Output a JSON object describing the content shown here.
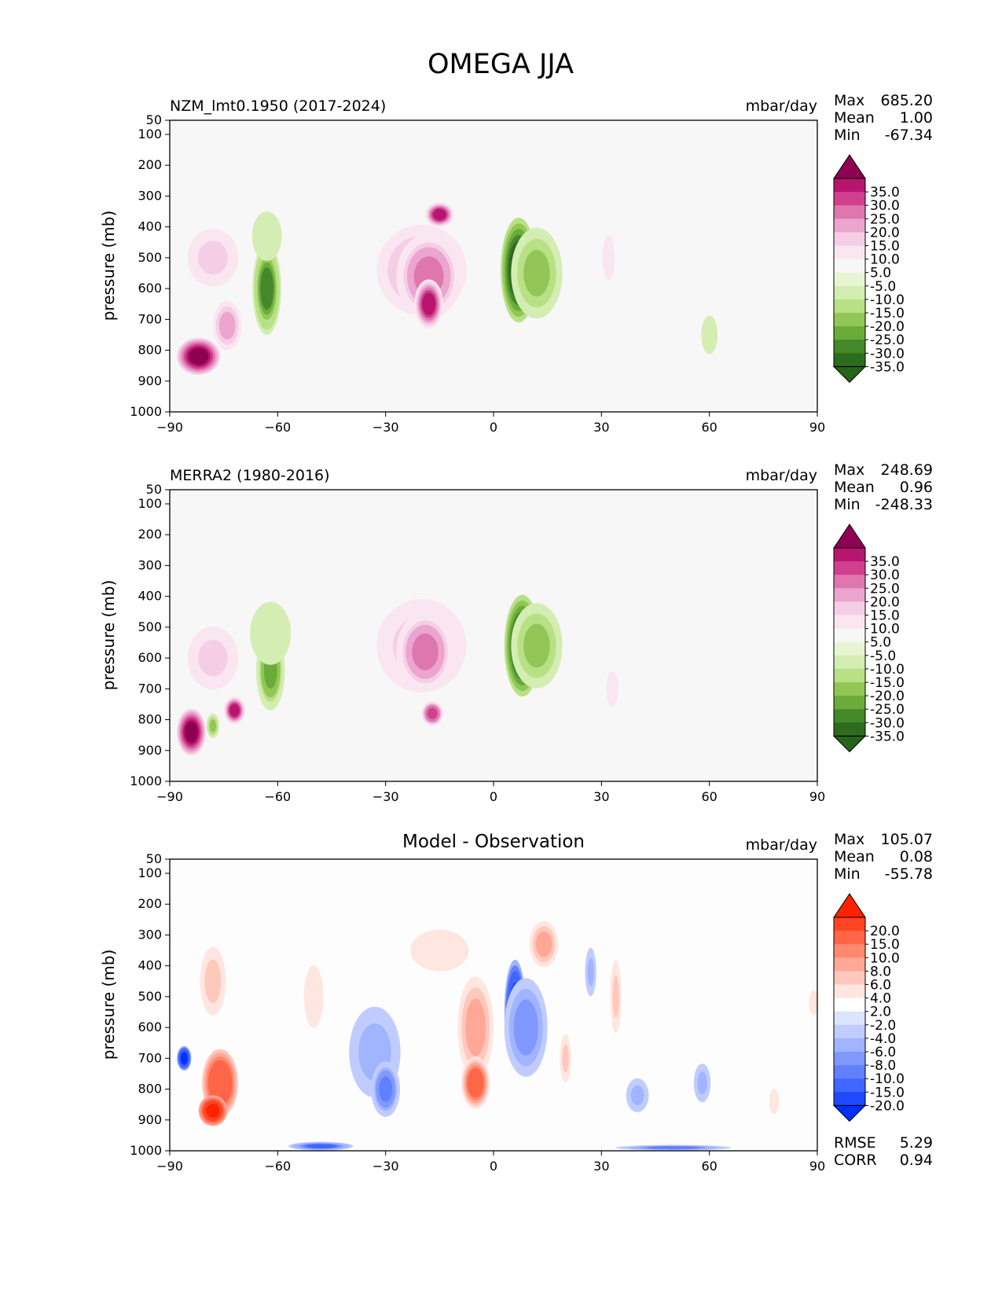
{
  "figure_title": "OMEGA JJA",
  "chart_data": [
    {
      "type": "heatmap",
      "panel": "model",
      "title": "NZM_lmt0.1950 (2017-2024)",
      "units": "mbar/day",
      "xlabel": "",
      "ylabel": "pressure (mb)",
      "xlim": [
        -90,
        90
      ],
      "ylim": [
        1000,
        50
      ],
      "x_ticks": [
        "−90",
        "−60",
        "−30",
        "0",
        "30",
        "60",
        "90"
      ],
      "y_ticks": [
        "50",
        "100",
        "200",
        "300",
        "400",
        "500",
        "600",
        "700",
        "800",
        "900",
        "1000"
      ],
      "stats": {
        "max_label": "Max",
        "max": "685.20",
        "mean_label": "Mean",
        "mean": "1.00",
        "min_label": "Min",
        "min": "-67.34"
      },
      "colorbar": {
        "labels": [
          "35.0",
          "30.0",
          "25.0",
          "20.0",
          "15.0",
          "10.0",
          "5.0",
          "-5.0",
          "-10.0",
          "-15.0",
          "-20.0",
          "-25.0",
          "-30.0",
          "-35.0"
        ],
        "colors": [
          "#8e0152",
          "#b8156e",
          "#d13f8f",
          "#de77ae",
          "#eba5cf",
          "#f5cee6",
          "#fae6f1",
          "#f7f7f7",
          "#e8f5d5",
          "#d4edb3",
          "#b8e186",
          "#92c657",
          "#6aab3a",
          "#44882a",
          "#2d6b1f",
          "#276419"
        ]
      },
      "features": [
        {
          "kind": "blob",
          "lat": -78,
          "plev": 500,
          "wlat": 9,
          "hp": 240,
          "value": 10
        },
        {
          "kind": "blob",
          "lat": -82,
          "plev": 820,
          "wlat": 6,
          "hp": 120,
          "value": 40
        },
        {
          "kind": "blob",
          "lat": -74,
          "plev": 720,
          "wlat": 4,
          "hp": 160,
          "value": 18
        },
        {
          "kind": "blob",
          "lat": -63,
          "plev": 600,
          "wlat": 4,
          "hp": 300,
          "value": -25
        },
        {
          "kind": "blob",
          "lat": -63,
          "plev": 430,
          "wlat": 9,
          "hp": 350,
          "value": -5
        },
        {
          "kind": "blob",
          "lat": -20,
          "plev": 540,
          "wlat": 14,
          "hp": 330,
          "value": 14
        },
        {
          "kind": "blob",
          "lat": -18,
          "plev": 560,
          "wlat": 9,
          "hp": 280,
          "value": 22
        },
        {
          "kind": "blob",
          "lat": -15,
          "plev": 360,
          "wlat": 4,
          "hp": 80,
          "value": 30
        },
        {
          "kind": "blob",
          "lat": -18,
          "plev": 650,
          "wlat": 4,
          "hp": 160,
          "value": 30
        },
        {
          "kind": "blob",
          "lat": 7,
          "plev": 540,
          "wlat": 5,
          "hp": 340,
          "value": -35
        },
        {
          "kind": "blob",
          "lat": 12,
          "plev": 550,
          "wlat": 8,
          "hp": 330,
          "value": -15
        },
        {
          "kind": "blob",
          "lat": 32,
          "plev": 500,
          "wlat": 3,
          "hp": 260,
          "value": 6
        },
        {
          "kind": "blob",
          "lat": 60,
          "plev": 750,
          "wlat": 4,
          "hp": 220,
          "value": -6
        }
      ]
    },
    {
      "type": "heatmap",
      "panel": "observation",
      "title": "MERRA2 (1980-2016)",
      "units": "mbar/day",
      "xlabel": "",
      "ylabel": "pressure (mb)",
      "xlim": [
        -90,
        90
      ],
      "ylim": [
        1000,
        50
      ],
      "x_ticks": [
        "−90",
        "−60",
        "−30",
        "0",
        "30",
        "60",
        "90"
      ],
      "y_ticks": [
        "50",
        "100",
        "200",
        "300",
        "400",
        "500",
        "600",
        "700",
        "800",
        "900",
        "1000"
      ],
      "stats": {
        "max_label": "Max",
        "max": "248.69",
        "mean_label": "Mean",
        "mean": "0.96",
        "min_label": "Min",
        "min": "-248.33"
      },
      "colorbar": {
        "labels": [
          "35.0",
          "30.0",
          "25.0",
          "20.0",
          "15.0",
          "10.0",
          "5.0",
          "-5.0",
          "-10.0",
          "-15.0",
          "-20.0",
          "-25.0",
          "-30.0",
          "-35.0"
        ],
        "colors": [
          "#8e0152",
          "#b8156e",
          "#d13f8f",
          "#de77ae",
          "#eba5cf",
          "#f5cee6",
          "#fae6f1",
          "#f7f7f7",
          "#e8f5d5",
          "#d4edb3",
          "#b8e186",
          "#92c657",
          "#6aab3a",
          "#44882a",
          "#2d6b1f",
          "#276419"
        ]
      },
      "features": [
        {
          "kind": "blob",
          "lat": -78,
          "plev": 600,
          "wlat": 9,
          "hp": 260,
          "value": 10
        },
        {
          "kind": "blob",
          "lat": -84,
          "plev": 840,
          "wlat": 4,
          "hp": 150,
          "value": 40
        },
        {
          "kind": "blob",
          "lat": -72,
          "plev": 770,
          "wlat": 3,
          "hp": 90,
          "value": 30
        },
        {
          "kind": "blob",
          "lat": -78,
          "plev": 820,
          "wlat": 2,
          "hp": 90,
          "value": -15
        },
        {
          "kind": "blob",
          "lat": -62,
          "plev": 640,
          "wlat": 4,
          "hp": 260,
          "value": -22
        },
        {
          "kind": "blob",
          "lat": -62,
          "plev": 520,
          "wlat": 10,
          "hp": 360,
          "value": -6
        },
        {
          "kind": "blob",
          "lat": -20,
          "plev": 560,
          "wlat": 14,
          "hp": 340,
          "value": 12
        },
        {
          "kind": "blob",
          "lat": -19,
          "plev": 580,
          "wlat": 8,
          "hp": 260,
          "value": 22
        },
        {
          "kind": "blob",
          "lat": -17,
          "plev": 780,
          "wlat": 3,
          "hp": 80,
          "value": 28
        },
        {
          "kind": "blob",
          "lat": 8,
          "plev": 560,
          "wlat": 5,
          "hp": 330,
          "value": -35
        },
        {
          "kind": "blob",
          "lat": 12,
          "plev": 560,
          "wlat": 8,
          "hp": 310,
          "value": -16
        },
        {
          "kind": "blob",
          "lat": 33,
          "plev": 700,
          "wlat": 3,
          "hp": 200,
          "value": 6
        }
      ]
    },
    {
      "type": "heatmap",
      "panel": "difference",
      "title": "Model - Observation",
      "units": "mbar/day",
      "xlabel": "",
      "ylabel": "pressure (mb)",
      "xlim": [
        -90,
        90
      ],
      "ylim": [
        1000,
        50
      ],
      "x_ticks": [
        "−90",
        "−60",
        "−30",
        "0",
        "30",
        "60",
        "90"
      ],
      "y_ticks": [
        "50",
        "100",
        "200",
        "300",
        "400",
        "500",
        "600",
        "700",
        "800",
        "900",
        "1000"
      ],
      "stats": {
        "max_label": "Max",
        "max": "105.07",
        "mean_label": "Mean",
        "mean": "0.08",
        "min_label": "Min",
        "min": "-55.78"
      },
      "metrics": {
        "rmse_label": "RMSE",
        "rmse": "5.29",
        "corr_label": "CORR",
        "corr": "0.94"
      },
      "colorbar": {
        "labels": [
          "20.0",
          "15.0",
          "10.0",
          "8.0",
          "6.0",
          "4.0",
          "2.0",
          "-2.0",
          "-4.0",
          "-6.0",
          "-8.0",
          "-10.0",
          "-15.0",
          "-20.0"
        ],
        "colors": [
          "#ff2200",
          "#ff4422",
          "#ff6648",
          "#ff8870",
          "#ffa898",
          "#ffc8bc",
          "#ffe6e0",
          "#ffffff",
          "#dde4ff",
          "#c0ccff",
          "#a0b4ff",
          "#8098ff",
          "#6080ff",
          "#3f66ff",
          "#1f48ff",
          "#0030ff"
        ]
      },
      "features": [
        {
          "kind": "blob",
          "lat": -76,
          "plev": 780,
          "wlat": 5,
          "hp": 220,
          "value": 14
        },
        {
          "kind": "blob",
          "lat": -78,
          "plev": 870,
          "wlat": 4,
          "hp": 100,
          "value": 22
        },
        {
          "kind": "blob",
          "lat": -86,
          "plev": 700,
          "wlat": 2,
          "hp": 80,
          "value": -20
        },
        {
          "kind": "blob",
          "lat": -78,
          "plev": 450,
          "wlat": 4,
          "hp": 250,
          "value": 5
        },
        {
          "kind": "blob",
          "lat": -50,
          "plev": 500,
          "wlat": 4,
          "hp": 300,
          "value": 3
        },
        {
          "kind": "blob",
          "lat": -33,
          "plev": 680,
          "wlat": 8,
          "hp": 330,
          "value": -5
        },
        {
          "kind": "blob",
          "lat": -30,
          "plev": 800,
          "wlat": 4,
          "hp": 180,
          "value": -9
        },
        {
          "kind": "blob",
          "lat": -15,
          "plev": 350,
          "wlat": 12,
          "hp": 200,
          "value": 3
        },
        {
          "kind": "blob",
          "lat": -5,
          "plev": 600,
          "wlat": 5,
          "hp": 330,
          "value": 7
        },
        {
          "kind": "blob",
          "lat": -5,
          "plev": 780,
          "wlat": 4,
          "hp": 170,
          "value": 12
        },
        {
          "kind": "blob",
          "lat": 6,
          "plev": 550,
          "wlat": 3,
          "hp": 340,
          "value": -20
        },
        {
          "kind": "blob",
          "lat": 9,
          "plev": 600,
          "wlat": 6,
          "hp": 320,
          "value": -7
        },
        {
          "kind": "blob",
          "lat": 14,
          "plev": 330,
          "wlat": 4,
          "hp": 150,
          "value": 7
        },
        {
          "kind": "blob",
          "lat": 20,
          "plev": 700,
          "wlat": 2,
          "hp": 200,
          "value": 4
        },
        {
          "kind": "blob",
          "lat": 27,
          "plev": 420,
          "wlat": 2,
          "hp": 200,
          "value": -4
        },
        {
          "kind": "blob",
          "lat": 34,
          "plev": 500,
          "wlat": 2,
          "hp": 300,
          "value": 4
        },
        {
          "kind": "blob",
          "lat": 40,
          "plev": 820,
          "wlat": 4,
          "hp": 140,
          "value": -4
        },
        {
          "kind": "blob",
          "lat": 58,
          "plev": 780,
          "wlat": 3,
          "hp": 160,
          "value": -4
        },
        {
          "kind": "blob",
          "lat": 50,
          "plev": 990,
          "wlat": 16,
          "hp": 18,
          "value": -8
        },
        {
          "kind": "blob",
          "lat": -48,
          "plev": 985,
          "wlat": 9,
          "hp": 28,
          "value": -10
        },
        {
          "kind": "blob",
          "lat": 78,
          "plev": 840,
          "wlat": 2,
          "hp": 120,
          "value": 3
        },
        {
          "kind": "blob",
          "lat": 89,
          "plev": 520,
          "wlat": 2,
          "hp": 120,
          "value": 3
        }
      ]
    }
  ]
}
